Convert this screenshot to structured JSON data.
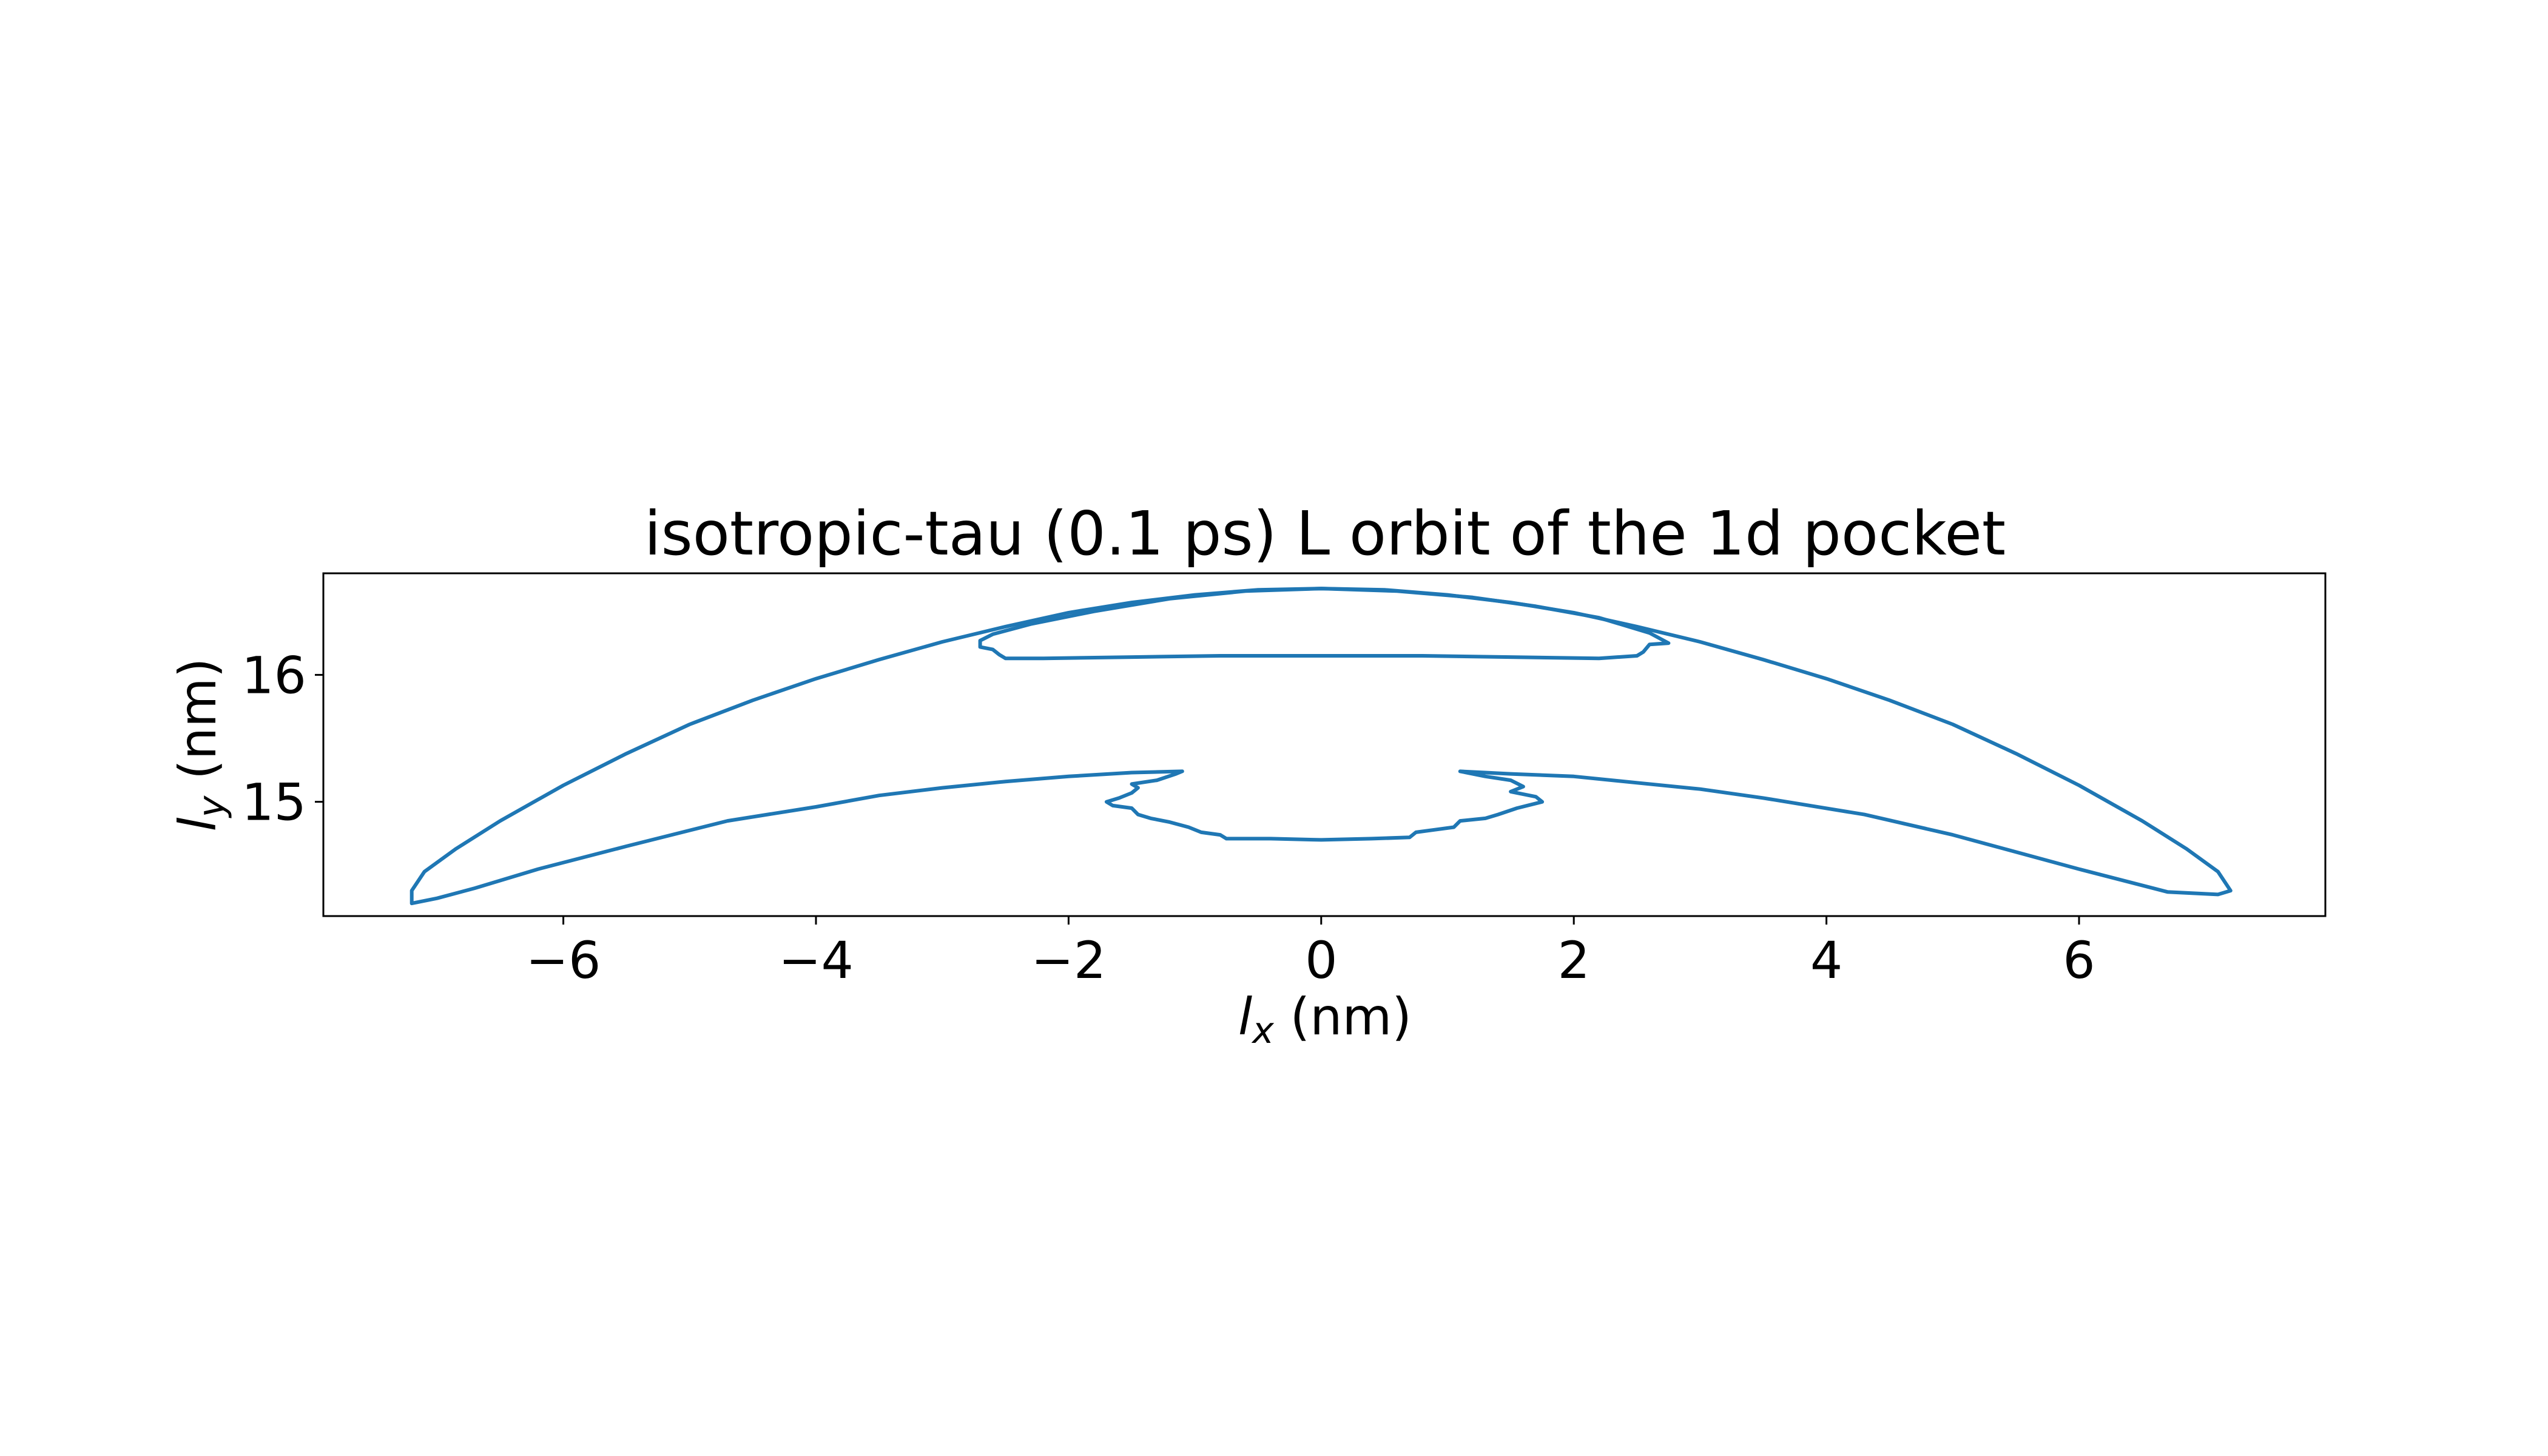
{
  "chart_data": {
    "type": "line",
    "title": "isotropic-tau (0.1 ps) L orbit of the 1d pocket",
    "xlabel": {
      "var": "l",
      "sub": "x",
      "unit": " (nm)"
    },
    "ylabel": {
      "var": "l",
      "sub": "y",
      "unit": " (nm)"
    },
    "xlim": [
      -7.9,
      7.95
    ],
    "ylim": [
      14.1,
      16.8
    ],
    "xticks": [
      -6,
      -4,
      -2,
      0,
      2,
      4,
      6
    ],
    "xtick_labels": [
      "−6",
      "−4",
      "−2",
      "0",
      "2",
      "4",
      "6"
    ],
    "yticks": [
      15,
      16
    ],
    "ytick_labels": [
      "15",
      "16"
    ],
    "grid": false,
    "legend": "none",
    "line_color": "#1f77b4",
    "series": [
      {
        "points": [
          [
            -7.2,
            14.2
          ],
          [
            -7.2,
            14.3
          ],
          [
            -7.1,
            14.45
          ],
          [
            -6.85,
            14.63
          ],
          [
            -6.5,
            14.85
          ],
          [
            -6.0,
            15.13
          ],
          [
            -5.5,
            15.38
          ],
          [
            -5.0,
            15.61
          ],
          [
            -4.5,
            15.8
          ],
          [
            -4.0,
            15.97
          ],
          [
            -3.5,
            16.12
          ],
          [
            -3.0,
            16.26
          ],
          [
            -2.5,
            16.38
          ],
          [
            -2.0,
            16.49
          ],
          [
            -1.5,
            16.57
          ],
          [
            -1.0,
            16.63
          ],
          [
            -0.5,
            16.67
          ],
          [
            0.0,
            16.68
          ],
          [
            0.5,
            16.67
          ],
          [
            1.0,
            16.63
          ],
          [
            1.5,
            16.57
          ],
          [
            2.0,
            16.49
          ],
          [
            2.5,
            16.38
          ],
          [
            3.0,
            16.26
          ],
          [
            3.5,
            16.12
          ],
          [
            4.0,
            15.97
          ],
          [
            4.5,
            15.8
          ],
          [
            5.0,
            15.61
          ],
          [
            5.5,
            15.38
          ],
          [
            6.0,
            15.13
          ],
          [
            6.5,
            14.85
          ],
          [
            6.85,
            14.63
          ],
          [
            7.1,
            14.45
          ],
          [
            7.2,
            14.3
          ],
          [
            7.1,
            14.27
          ],
          [
            6.7,
            14.29
          ],
          [
            6.0,
            14.47
          ],
          [
            5.0,
            14.74
          ],
          [
            4.3,
            14.9
          ],
          [
            3.5,
            15.03
          ],
          [
            3.0,
            15.1
          ],
          [
            2.5,
            15.15
          ],
          [
            2.0,
            15.2
          ],
          [
            1.5,
            15.22
          ],
          [
            1.1,
            15.24
          ],
          [
            1.3,
            15.2
          ],
          [
            1.5,
            15.17
          ],
          [
            1.6,
            15.12
          ],
          [
            1.5,
            15.08
          ],
          [
            1.7,
            15.04
          ],
          [
            1.75,
            15.0
          ],
          [
            1.55,
            14.95
          ],
          [
            1.4,
            14.9
          ],
          [
            1.3,
            14.87
          ],
          [
            1.1,
            14.85
          ],
          [
            1.05,
            14.8
          ],
          [
            0.9,
            14.78
          ],
          [
            0.75,
            14.76
          ],
          [
            0.7,
            14.72
          ],
          [
            0.4,
            14.71
          ],
          [
            0.0,
            14.7
          ],
          [
            -0.4,
            14.71
          ],
          [
            -0.75,
            14.71
          ],
          [
            -0.8,
            14.74
          ],
          [
            -0.95,
            14.76
          ],
          [
            -1.05,
            14.8
          ],
          [
            -1.2,
            14.84
          ],
          [
            -1.35,
            14.87
          ],
          [
            -1.45,
            14.9
          ],
          [
            -1.5,
            14.95
          ],
          [
            -1.65,
            14.97
          ],
          [
            -1.7,
            15.0
          ],
          [
            -1.6,
            15.03
          ],
          [
            -1.5,
            15.07
          ],
          [
            -1.45,
            15.11
          ],
          [
            -1.5,
            15.14
          ],
          [
            -1.3,
            15.17
          ],
          [
            -1.15,
            15.22
          ],
          [
            -1.1,
            15.24
          ],
          [
            -1.5,
            15.23
          ],
          [
            -2.0,
            15.2
          ],
          [
            -2.5,
            15.16
          ],
          [
            -3.0,
            15.11
          ],
          [
            -3.5,
            15.05
          ],
          [
            -4.0,
            14.96
          ],
          [
            -4.7,
            14.85
          ],
          [
            -5.5,
            14.65
          ],
          [
            -6.2,
            14.47
          ],
          [
            -6.7,
            14.32
          ],
          [
            -7.0,
            14.24
          ],
          [
            -7.2,
            14.2
          ]
        ]
      },
      {
        "points": [
          [
            -2.7,
            16.27
          ],
          [
            -2.6,
            16.32
          ],
          [
            -2.3,
            16.4
          ],
          [
            -1.8,
            16.5
          ],
          [
            -1.2,
            16.6
          ],
          [
            -0.6,
            16.66
          ],
          [
            0.0,
            16.68
          ],
          [
            0.6,
            16.66
          ],
          [
            1.2,
            16.61
          ],
          [
            1.7,
            16.54
          ],
          [
            2.2,
            16.45
          ],
          [
            2.6,
            16.33
          ],
          [
            2.75,
            16.25
          ],
          [
            2.6,
            16.24
          ],
          [
            2.55,
            16.18
          ],
          [
            2.5,
            16.15
          ],
          [
            2.2,
            16.13
          ],
          [
            1.5,
            16.14
          ],
          [
            0.8,
            16.15
          ],
          [
            0.0,
            16.15
          ],
          [
            -0.8,
            16.15
          ],
          [
            -1.5,
            16.14
          ],
          [
            -2.2,
            16.13
          ],
          [
            -2.5,
            16.13
          ],
          [
            -2.55,
            16.16
          ],
          [
            -2.6,
            16.2
          ],
          [
            -2.7,
            16.22
          ],
          [
            -2.7,
            16.27
          ]
        ]
      }
    ]
  }
}
